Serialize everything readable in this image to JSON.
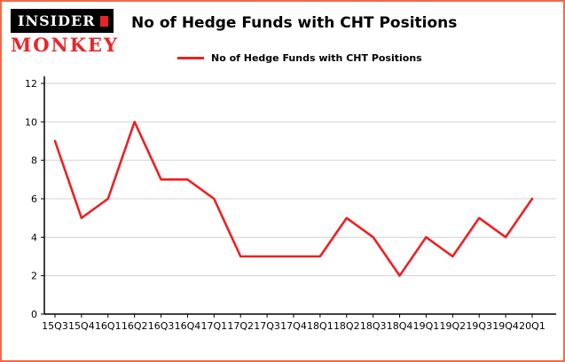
{
  "logo": {
    "line1": "INSIDER",
    "line2": "MONKEY"
  },
  "title": "No of Hedge Funds with CHT Positions",
  "legend_label": "No of Hedge Funds with CHT Positions",
  "colors": {
    "line": "#ed2024",
    "border": "#f26a4b",
    "grid": "#d3d3d3",
    "axis": "#000000",
    "logo_black": "#000000",
    "logo_red": "#e8262a"
  },
  "chart_data": {
    "type": "line",
    "title": "No of Hedge Funds with CHT Positions",
    "legend": [
      "No of Hedge Funds with CHT Positions"
    ],
    "legend_position": "top-left",
    "categories": [
      "15Q3",
      "15Q4",
      "16Q1",
      "16Q2",
      "16Q3",
      "16Q4",
      "17Q1",
      "17Q2",
      "17Q3",
      "17Q4",
      "18Q1",
      "18Q2",
      "18Q3",
      "18Q4",
      "19Q1",
      "19Q2",
      "19Q3",
      "19Q4",
      "20Q1"
    ],
    "values": [
      9,
      5,
      6,
      10,
      7,
      7,
      6,
      3,
      3,
      3,
      3,
      5,
      4,
      2,
      4,
      3,
      5,
      4,
      6
    ],
    "xlabel": "",
    "ylabel": "",
    "ylim": [
      0,
      12
    ],
    "yticks": [
      0,
      2,
      4,
      6,
      8,
      10,
      12
    ],
    "grid": true,
    "line_color": "#ed2024"
  }
}
